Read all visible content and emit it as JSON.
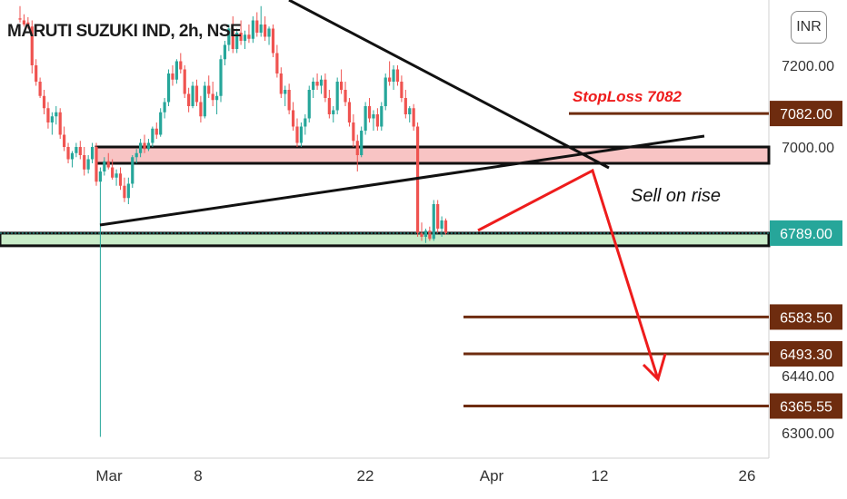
{
  "header": {
    "title": "MARUTI SUZUKI IND, 2h, NSE",
    "currency": "INR"
  },
  "colors": {
    "up": "#26a69a",
    "down": "#ef5350",
    "level": "#6e2c0f",
    "arrow": "#ee1c1c",
    "zone_red": "#f8c4c4",
    "zone_green": "#c9ecc9",
    "last": "#26a69a"
  },
  "chart_data": {
    "type": "candlestick",
    "symbol": "MARUTI SUZUKI IND",
    "interval": "2h",
    "exchange": "NSE",
    "currency": "INR",
    "ylim": [
      6290,
      7345
    ],
    "y_ticks": [
      7200,
      7000,
      6440,
      6300
    ],
    "x_ticks": [
      "Mar",
      "8",
      "22",
      "Apr",
      "12",
      "26"
    ],
    "last_price": {
      "value": 6789.0,
      "label": "6789.00"
    },
    "levels": [
      {
        "value": 7082,
        "label": "7082.00",
        "note": "StopLoss 7082"
      },
      {
        "value": 6583.5,
        "label": "6583.50"
      },
      {
        "value": 6493.3,
        "label": "6493.30"
      },
      {
        "value": 6365.55,
        "label": "6365.55"
      }
    ],
    "zones": [
      {
        "name": "resistance",
        "top": 7000,
        "bottom": 6960
      },
      {
        "name": "support",
        "top": 6789,
        "bottom": 6758
      }
    ],
    "annotations": [
      {
        "text": "Sell on rise"
      }
    ],
    "candles": [
      {
        "i": 0,
        "o": 7315,
        "h": 7345,
        "l": 7305,
        "c": 7312
      },
      {
        "i": 1,
        "o": 7310,
        "h": 7325,
        "l": 7295,
        "c": 7300
      },
      {
        "i": 2,
        "o": 7305,
        "h": 7318,
        "l": 7290,
        "c": 7296
      },
      {
        "i": 3,
        "o": 7295,
        "h": 7310,
        "l": 7180,
        "c": 7200
      },
      {
        "i": 4,
        "o": 7200,
        "h": 7215,
        "l": 7150,
        "c": 7160
      },
      {
        "i": 5,
        "o": 7160,
        "h": 7170,
        "l": 7120,
        "c": 7125
      },
      {
        "i": 6,
        "o": 7125,
        "h": 7140,
        "l": 7080,
        "c": 7095
      },
      {
        "i": 7,
        "o": 7095,
        "h": 7110,
        "l": 7045,
        "c": 7060
      },
      {
        "i": 8,
        "o": 7060,
        "h": 7085,
        "l": 7030,
        "c": 7075
      },
      {
        "i": 9,
        "o": 7075,
        "h": 7100,
        "l": 7055,
        "c": 7085
      },
      {
        "i": 10,
        "o": 7085,
        "h": 7095,
        "l": 7020,
        "c": 7030
      },
      {
        "i": 11,
        "o": 7030,
        "h": 7050,
        "l": 6990,
        "c": 7000
      },
      {
        "i": 12,
        "o": 7000,
        "h": 7010,
        "l": 6960,
        "c": 6970
      },
      {
        "i": 13,
        "o": 6970,
        "h": 6990,
        "l": 6950,
        "c": 6985
      },
      {
        "i": 14,
        "o": 6985,
        "h": 7010,
        "l": 6975,
        "c": 7000
      },
      {
        "i": 15,
        "o": 7000,
        "h": 7015,
        "l": 6970,
        "c": 6980
      },
      {
        "i": 16,
        "o": 6980,
        "h": 7000,
        "l": 6930,
        "c": 6945
      },
      {
        "i": 17,
        "o": 6945,
        "h": 6980,
        "l": 6935,
        "c": 6970
      },
      {
        "i": 18,
        "o": 6970,
        "h": 7010,
        "l": 6960,
        "c": 7000
      },
      {
        "i": 19,
        "o": 7000,
        "h": 7010,
        "l": 6905,
        "c": 6915
      },
      {
        "i": 20,
        "o": 6915,
        "h": 6950,
        "l": 6290,
        "c": 6940
      },
      {
        "i": 21,
        "o": 6940,
        "h": 6975,
        "l": 6930,
        "c": 6965
      },
      {
        "i": 22,
        "o": 6965,
        "h": 6985,
        "l": 6945,
        "c": 6950
      },
      {
        "i": 23,
        "o": 6950,
        "h": 6970,
        "l": 6920,
        "c": 6925
      },
      {
        "i": 24,
        "o": 6925,
        "h": 6945,
        "l": 6905,
        "c": 6935
      },
      {
        "i": 25,
        "o": 6935,
        "h": 6950,
        "l": 6895,
        "c": 6905
      },
      {
        "i": 26,
        "o": 6905,
        "h": 6925,
        "l": 6865,
        "c": 6875
      },
      {
        "i": 27,
        "o": 6875,
        "h": 6925,
        "l": 6860,
        "c": 6910
      },
      {
        "i": 28,
        "o": 6910,
        "h": 6980,
        "l": 6900,
        "c": 6975
      },
      {
        "i": 29,
        "o": 6975,
        "h": 6995,
        "l": 6960,
        "c": 6985
      },
      {
        "i": 30,
        "o": 6985,
        "h": 7020,
        "l": 6975,
        "c": 7010
      },
      {
        "i": 31,
        "o": 7010,
        "h": 7030,
        "l": 6985,
        "c": 6995
      },
      {
        "i": 32,
        "o": 6995,
        "h": 7020,
        "l": 6990,
        "c": 7010
      },
      {
        "i": 33,
        "o": 7010,
        "h": 7050,
        "l": 7000,
        "c": 7045
      },
      {
        "i": 34,
        "o": 7045,
        "h": 7060,
        "l": 7020,
        "c": 7030
      },
      {
        "i": 35,
        "o": 7030,
        "h": 7095,
        "l": 7025,
        "c": 7085
      },
      {
        "i": 36,
        "o": 7085,
        "h": 7120,
        "l": 7070,
        "c": 7110
      },
      {
        "i": 37,
        "o": 7110,
        "h": 7190,
        "l": 7100,
        "c": 7180
      },
      {
        "i": 38,
        "o": 7180,
        "h": 7200,
        "l": 7150,
        "c": 7165
      },
      {
        "i": 39,
        "o": 7165,
        "h": 7215,
        "l": 7155,
        "c": 7210
      },
      {
        "i": 40,
        "o": 7210,
        "h": 7230,
        "l": 7180,
        "c": 7190
      },
      {
        "i": 41,
        "o": 7190,
        "h": 7200,
        "l": 7120,
        "c": 7130
      },
      {
        "i": 42,
        "o": 7130,
        "h": 7145,
        "l": 7085,
        "c": 7100
      },
      {
        "i": 43,
        "o": 7100,
        "h": 7160,
        "l": 7095,
        "c": 7150
      },
      {
        "i": 44,
        "o": 7150,
        "h": 7165,
        "l": 7100,
        "c": 7110
      },
      {
        "i": 45,
        "o": 7110,
        "h": 7125,
        "l": 7060,
        "c": 7075
      },
      {
        "i": 46,
        "o": 7075,
        "h": 7160,
        "l": 7070,
        "c": 7150
      },
      {
        "i": 47,
        "o": 7150,
        "h": 7175,
        "l": 7120,
        "c": 7130
      },
      {
        "i": 48,
        "o": 7130,
        "h": 7160,
        "l": 7100,
        "c": 7115
      },
      {
        "i": 49,
        "o": 7115,
        "h": 7135,
        "l": 7080,
        "c": 7125
      },
      {
        "i": 50,
        "o": 7125,
        "h": 7225,
        "l": 7110,
        "c": 7215
      },
      {
        "i": 51,
        "o": 7215,
        "h": 7260,
        "l": 7200,
        "c": 7250
      },
      {
        "i": 52,
        "o": 7250,
        "h": 7300,
        "l": 7235,
        "c": 7290
      },
      {
        "i": 53,
        "o": 7290,
        "h": 7320,
        "l": 7230,
        "c": 7240
      },
      {
        "i": 54,
        "o": 7240,
        "h": 7290,
        "l": 7230,
        "c": 7280
      },
      {
        "i": 55,
        "o": 7280,
        "h": 7310,
        "l": 7250,
        "c": 7260
      },
      {
        "i": 56,
        "o": 7260,
        "h": 7285,
        "l": 7240,
        "c": 7275
      },
      {
        "i": 57,
        "o": 7275,
        "h": 7300,
        "l": 7255,
        "c": 7265
      },
      {
        "i": 58,
        "o": 7265,
        "h": 7320,
        "l": 7255,
        "c": 7310
      },
      {
        "i": 59,
        "o": 7310,
        "h": 7330,
        "l": 7270,
        "c": 7280
      },
      {
        "i": 60,
        "o": 7280,
        "h": 7345,
        "l": 7270,
        "c": 7300
      },
      {
        "i": 61,
        "o": 7300,
        "h": 7320,
        "l": 7260,
        "c": 7270
      },
      {
        "i": 62,
        "o": 7270,
        "h": 7295,
        "l": 7250,
        "c": 7290
      },
      {
        "i": 63,
        "o": 7290,
        "h": 7300,
        "l": 7220,
        "c": 7230
      },
      {
        "i": 64,
        "o": 7230,
        "h": 7250,
        "l": 7170,
        "c": 7180
      },
      {
        "i": 65,
        "o": 7180,
        "h": 7195,
        "l": 7120,
        "c": 7130
      },
      {
        "i": 66,
        "o": 7130,
        "h": 7150,
        "l": 7100,
        "c": 7140
      },
      {
        "i": 67,
        "o": 7140,
        "h": 7155,
        "l": 7080,
        "c": 7090
      },
      {
        "i": 68,
        "o": 7090,
        "h": 7110,
        "l": 7040,
        "c": 7050
      },
      {
        "i": 69,
        "o": 7050,
        "h": 7070,
        "l": 7000,
        "c": 7010
      },
      {
        "i": 70,
        "o": 7010,
        "h": 7060,
        "l": 7000,
        "c": 7050
      },
      {
        "i": 71,
        "o": 7050,
        "h": 7080,
        "l": 7030,
        "c": 7070
      },
      {
        "i": 72,
        "o": 7070,
        "h": 7150,
        "l": 7060,
        "c": 7140
      },
      {
        "i": 73,
        "o": 7140,
        "h": 7170,
        "l": 7120,
        "c": 7160
      },
      {
        "i": 74,
        "o": 7160,
        "h": 7180,
        "l": 7140,
        "c": 7150
      },
      {
        "i": 75,
        "o": 7150,
        "h": 7175,
        "l": 7130,
        "c": 7165
      },
      {
        "i": 76,
        "o": 7165,
        "h": 7180,
        "l": 7110,
        "c": 7120
      },
      {
        "i": 77,
        "o": 7120,
        "h": 7140,
        "l": 7070,
        "c": 7080
      },
      {
        "i": 78,
        "o": 7080,
        "h": 7100,
        "l": 7060,
        "c": 7090
      },
      {
        "i": 79,
        "o": 7090,
        "h": 7170,
        "l": 7080,
        "c": 7160
      },
      {
        "i": 80,
        "o": 7160,
        "h": 7190,
        "l": 7130,
        "c": 7140
      },
      {
        "i": 81,
        "o": 7140,
        "h": 7160,
        "l": 7100,
        "c": 7110
      },
      {
        "i": 82,
        "o": 7110,
        "h": 7120,
        "l": 7050,
        "c": 7060
      },
      {
        "i": 83,
        "o": 7060,
        "h": 7080,
        "l": 7000,
        "c": 7015
      },
      {
        "i": 84,
        "o": 7015,
        "h": 7030,
        "l": 6940,
        "c": 6980
      },
      {
        "i": 85,
        "o": 6980,
        "h": 7050,
        "l": 6975,
        "c": 7040
      },
      {
        "i": 86,
        "o": 7040,
        "h": 7110,
        "l": 7030,
        "c": 7100
      },
      {
        "i": 87,
        "o": 7100,
        "h": 7120,
        "l": 7060,
        "c": 7070
      },
      {
        "i": 88,
        "o": 7070,
        "h": 7090,
        "l": 7040,
        "c": 7080
      },
      {
        "i": 89,
        "o": 7080,
        "h": 7095,
        "l": 7040,
        "c": 7050
      },
      {
        "i": 90,
        "o": 7050,
        "h": 7110,
        "l": 7040,
        "c": 7100
      },
      {
        "i": 91,
        "o": 7100,
        "h": 7180,
        "l": 7090,
        "c": 7170
      },
      {
        "i": 92,
        "o": 7170,
        "h": 7210,
        "l": 7150,
        "c": 7160
      },
      {
        "i": 93,
        "o": 7160,
        "h": 7200,
        "l": 7140,
        "c": 7190
      },
      {
        "i": 94,
        "o": 7190,
        "h": 7200,
        "l": 7150,
        "c": 7160
      },
      {
        "i": 95,
        "o": 7160,
        "h": 7175,
        "l": 7110,
        "c": 7120
      },
      {
        "i": 96,
        "o": 7120,
        "h": 7140,
        "l": 7070,
        "c": 7080
      },
      {
        "i": 97,
        "o": 7080,
        "h": 7100,
        "l": 7060,
        "c": 7095
      },
      {
        "i": 98,
        "o": 7095,
        "h": 7105,
        "l": 7040,
        "c": 7050
      },
      {
        "i": 99,
        "o": 7050,
        "h": 7060,
        "l": 6780,
        "c": 6790
      },
      {
        "i": 100,
        "o": 6790,
        "h": 6815,
        "l": 6770,
        "c": 6780
      },
      {
        "i": 101,
        "o": 6780,
        "h": 6800,
        "l": 6765,
        "c": 6795
      },
      {
        "i": 102,
        "o": 6795,
        "h": 6805,
        "l": 6770,
        "c": 6775
      },
      {
        "i": 103,
        "o": 6775,
        "h": 6870,
        "l": 6770,
        "c": 6860
      },
      {
        "i": 104,
        "o": 6860,
        "h": 6870,
        "l": 6790,
        "c": 6800
      },
      {
        "i": 105,
        "o": 6800,
        "h": 6830,
        "l": 6780,
        "c": 6820
      },
      {
        "i": 106,
        "o": 6820,
        "h": 6825,
        "l": 6785,
        "c": 6789
      }
    ]
  }
}
